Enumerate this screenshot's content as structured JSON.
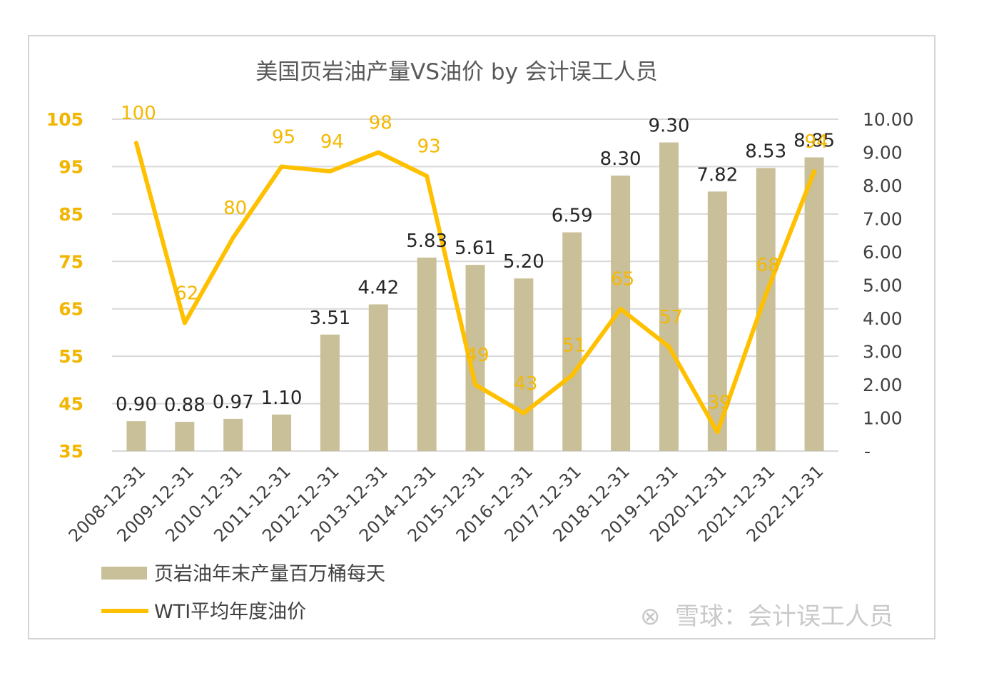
{
  "chart_data": {
    "type": "bar+line",
    "title": "美国页岩油产量VS油价 by 会计误工人员",
    "categories": [
      "2008-12-31",
      "2009-12-31",
      "2010-12-31",
      "2011-12-31",
      "2012-12-31",
      "2013-12-31",
      "2014-12-31",
      "2015-12-31",
      "2016-12-31",
      "2017-12-31",
      "2018-12-31",
      "2019-12-31",
      "2020-12-31",
      "2021-12-31",
      "2022-12-31"
    ],
    "series": [
      {
        "name": "页岩油年末产量百万桶每天",
        "type": "bar",
        "axis": "right",
        "color": "#c9bf98",
        "values": [
          0.9,
          0.88,
          0.97,
          1.1,
          3.51,
          4.42,
          5.83,
          5.61,
          5.2,
          6.59,
          8.3,
          9.3,
          7.82,
          8.53,
          8.85
        ],
        "labels": [
          "0.90",
          "0.88",
          "0.97",
          "1.10",
          "3.51",
          "4.42",
          "5.83",
          "5.61",
          "5.20",
          "6.59",
          "8.30",
          "9.30",
          "7.82",
          "8.53",
          "8.85"
        ]
      },
      {
        "name": "WTI平均年度油价",
        "type": "line",
        "axis": "left",
        "color": "#ffc000",
        "values": [
          100,
          62,
          80,
          95,
          94,
          98,
          93,
          49,
          43,
          51,
          65,
          57,
          39,
          68,
          94
        ],
        "labels": [
          "100",
          "62",
          "80",
          "95",
          "94",
          "98",
          "93",
          "49",
          "43",
          "51",
          "65",
          "57",
          "39",
          "68",
          "94"
        ]
      }
    ],
    "left_axis": {
      "min": 35,
      "max": 105,
      "ticks": [
        "105",
        "95",
        "85",
        "75",
        "65",
        "55",
        "45",
        "35"
      ],
      "tick_values": [
        105,
        95,
        85,
        75,
        65,
        55,
        45,
        35
      ]
    },
    "right_axis": {
      "min": 0,
      "max": 10,
      "ticks": [
        "10.00",
        "9.00",
        "8.00",
        "7.00",
        "6.00",
        "5.00",
        "4.00",
        "3.00",
        "2.00",
        "1.00",
        "-"
      ],
      "tick_values": [
        10,
        9,
        8,
        7,
        6,
        5,
        4,
        3,
        2,
        1,
        0
      ]
    },
    "grid": true,
    "legend_position": "bottom-left"
  },
  "watermark": {
    "glyph": "⊗",
    "text": "雪球：会计误工人员"
  }
}
